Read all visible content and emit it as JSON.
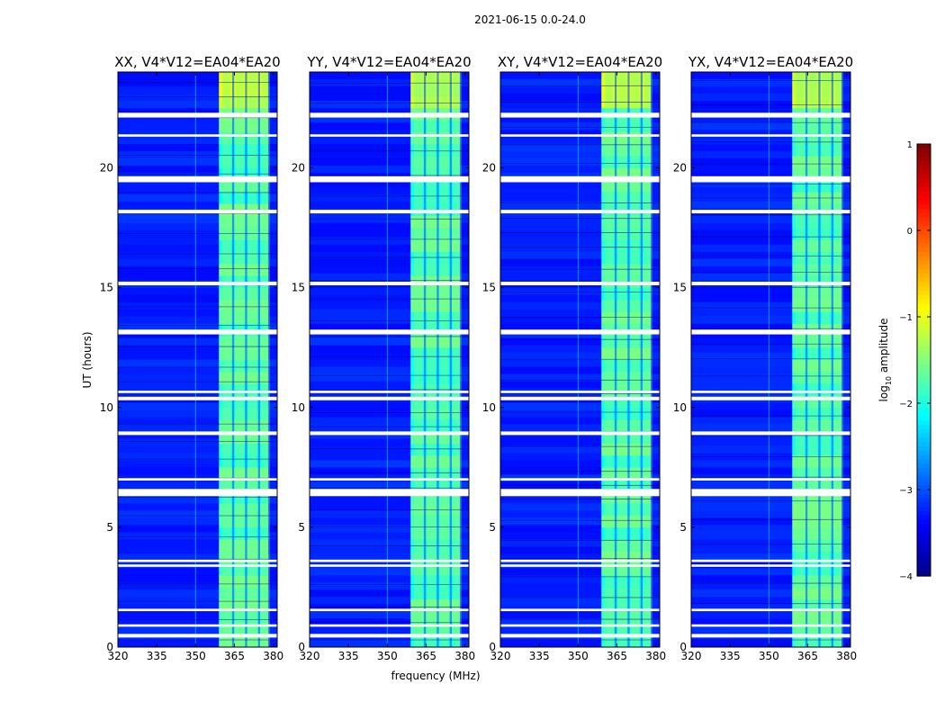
{
  "figure": {
    "suptitle": "2021-06-15 0.0-24.0"
  },
  "chart_data": {
    "type": "heatmap",
    "description_axis": {
      "xlabel": "frequency (MHz)",
      "ylabel": "UT (hours)",
      "xlim": [
        320,
        381.5
      ],
      "ylim": [
        0,
        24
      ],
      "xticks": [
        320,
        335,
        350,
        365,
        380
      ],
      "yticks": [
        0,
        5,
        10,
        15,
        20
      ]
    },
    "panels": [
      {
        "title": "XX, V4*V12=EA04*EA20"
      },
      {
        "title": "YY, V4*V12=EA04*EA20"
      },
      {
        "title": "XY, V4*V12=EA04*EA20"
      },
      {
        "title": "YX, V4*V12=EA04*EA20"
      }
    ],
    "signal_band_mhz": [
      359,
      378
    ],
    "signal_subchannels_mhz": [
      362,
      367,
      372,
      377
    ],
    "flagged_ut_ranges_hours": [
      [
        0.4,
        0.55
      ],
      [
        0.85,
        0.95
      ],
      [
        1.5,
        1.6
      ],
      [
        3.35,
        3.45
      ],
      [
        3.55,
        3.65
      ],
      [
        6.3,
        6.6
      ],
      [
        6.95,
        7.05
      ],
      [
        8.85,
        9.0
      ],
      [
        10.3,
        10.45
      ],
      [
        10.6,
        10.7
      ],
      [
        13.05,
        13.25
      ],
      [
        15.1,
        15.25
      ],
      [
        18.1,
        18.25
      ],
      [
        19.4,
        19.65
      ],
      [
        21.3,
        21.4
      ],
      [
        22.1,
        22.3
      ]
    ],
    "colorbar": {
      "label_prefix": "log",
      "label_sub": "10",
      "label_suffix": " amplitude",
      "range": [
        -4,
        1
      ],
      "ticks": [
        1,
        0,
        -1,
        -2,
        -3,
        -4
      ],
      "colormap": "jet"
    }
  }
}
